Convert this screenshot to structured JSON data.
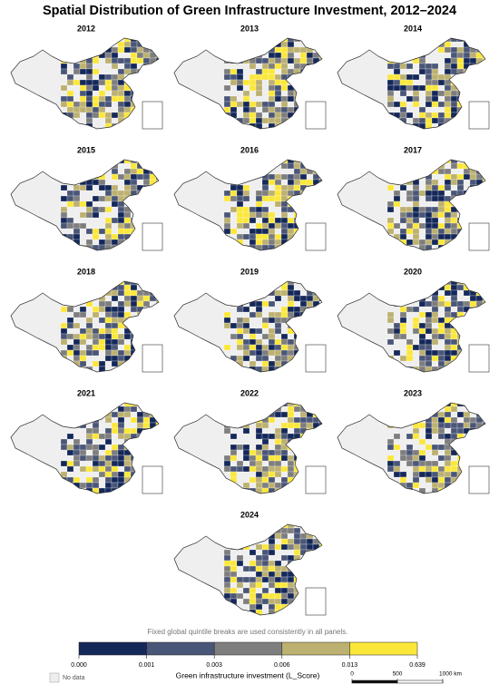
{
  "title": "Spatial Distribution of Green Infrastructure Investment, 2012–2024",
  "panels": [
    "2012",
    "2013",
    "2014",
    "2015",
    "2016",
    "2017",
    "2018",
    "2019",
    "2020",
    "2021",
    "2022",
    "2023",
    "2024"
  ],
  "note": "Fixed global quintile breaks are used consistently in all panels.",
  "legend": {
    "title": "Green infrastructure investment (L_Score)",
    "colors": [
      "#14285a",
      "#4a5678",
      "#7e7e7e",
      "#bcb170",
      "#fbe73a"
    ],
    "breaks": [
      {
        "value": 0,
        "label": "0.000"
      },
      {
        "value": 0.001,
        "label": "0.001"
      },
      {
        "value": 0.003,
        "label": "0.003"
      },
      {
        "value": 0.006,
        "label": "0.006"
      },
      {
        "value": 0.013,
        "label": "0.013"
      },
      {
        "value": 0.639,
        "label": "0.639"
      }
    ],
    "no_data": "No data"
  },
  "scale_bar": {
    "ticks": [
      0,
      500,
      {
        "value": 1000,
        "label": "1000 km"
      }
    ]
  }
}
